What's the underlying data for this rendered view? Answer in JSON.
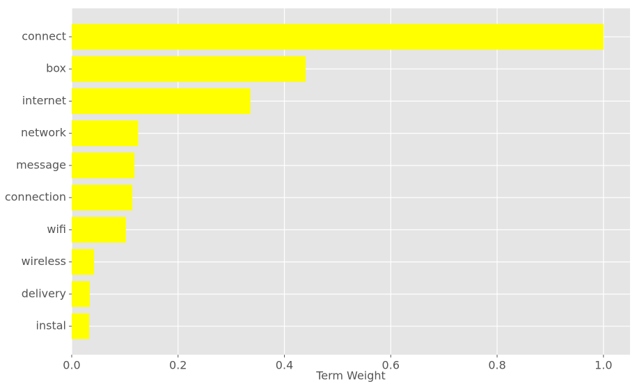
{
  "chart_data": {
    "type": "barh",
    "xlabel": "Term Weight",
    "categories": [
      "connect",
      "box",
      "internet",
      "network",
      "message",
      "connection",
      "wifi",
      "wireless",
      "delivery",
      "instal"
    ],
    "values": [
      1.0,
      0.44,
      0.336,
      0.125,
      0.118,
      0.114,
      0.102,
      0.042,
      0.034,
      0.033
    ],
    "color": "#ffff00",
    "xlim": [
      0,
      1.05
    ],
    "xticks": [
      {
        "value": 0,
        "label": "0.0"
      },
      0.2,
      0.4,
      0.6,
      0.8,
      {
        "value": 1,
        "label": "1.0"
      }
    ],
    "grid": true
  }
}
